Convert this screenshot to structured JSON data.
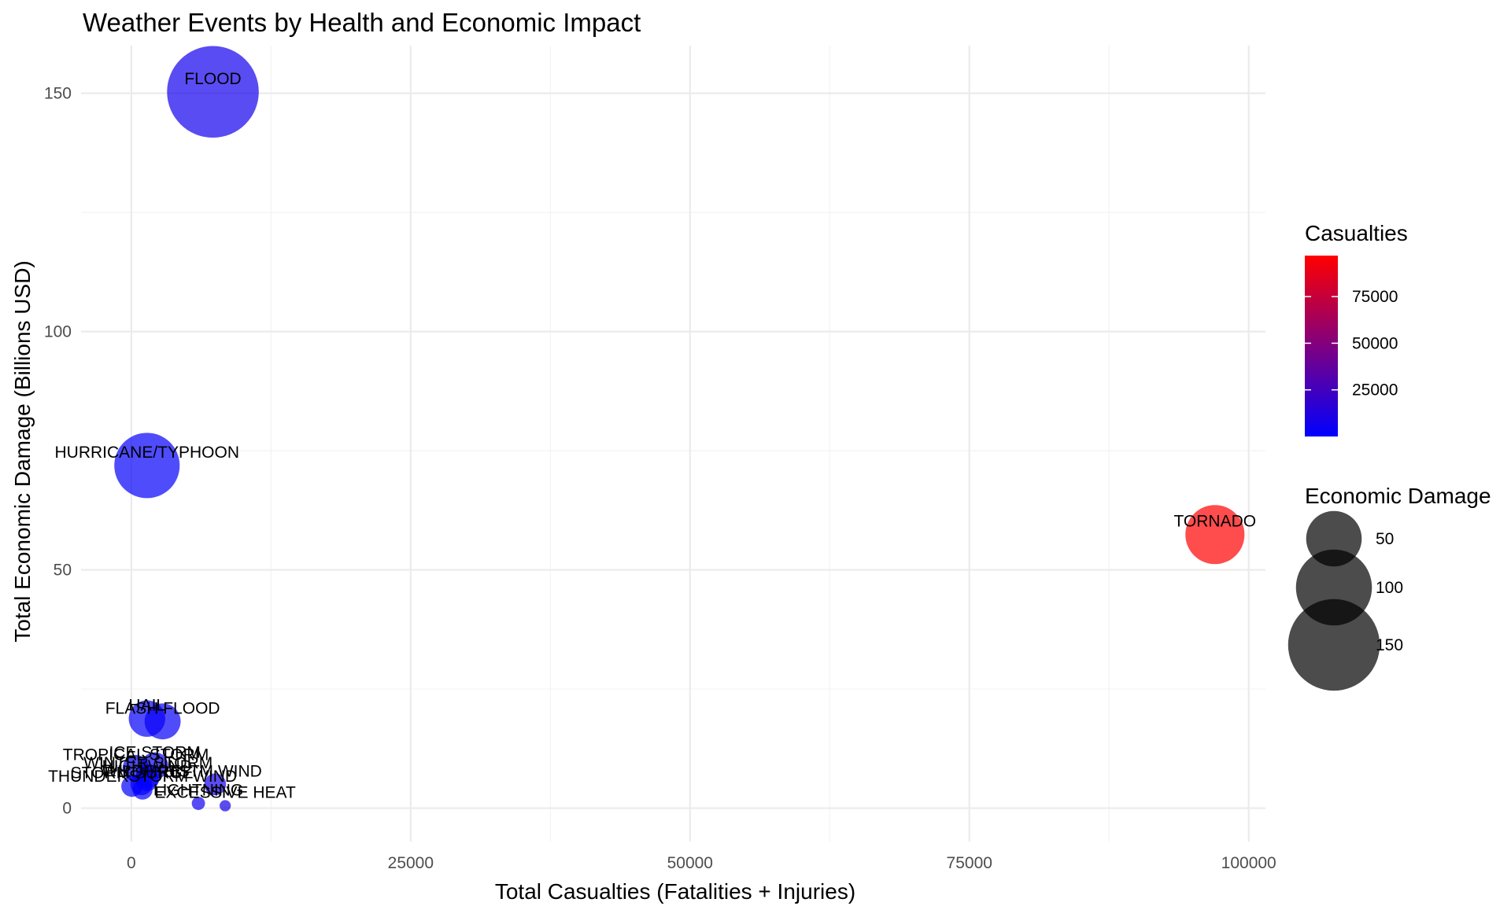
{
  "chart_data": {
    "type": "scatter",
    "title": "Weather Events by Health and Economic Impact",
    "xlabel": "Total Casualties (Fatalities + Injuries)",
    "ylabel": "Total Economic Damage (Billions USD)",
    "xlim": [
      -4500,
      101500
    ],
    "ylim": [
      -7,
      160
    ],
    "x_ticks": [
      0,
      25000,
      50000,
      75000,
      100000
    ],
    "y_ticks": [
      0,
      50,
      100,
      150
    ],
    "grid": true,
    "colors": {
      "low": "#0000ff",
      "high": "#ff0000",
      "alpha": 0.7
    },
    "points": [
      {
        "label": "FLOOD",
        "x": 7300,
        "y": 150.3,
        "size": 150.3
      },
      {
        "label": "HURRICANE/TYPHOON",
        "x": 1400,
        "y": 71.9,
        "size": 71.9
      },
      {
        "label": "TORNADO",
        "x": 96979,
        "y": 57.4,
        "size": 57.4
      },
      {
        "label": "HAIL",
        "x": 1400,
        "y": 18.8,
        "size": 18.8
      },
      {
        "label": "FLASH FLOOD",
        "x": 2800,
        "y": 18.2,
        "size": 18.2
      },
      {
        "label": "ICE STORM",
        "x": 2100,
        "y": 8.9,
        "size": 8.9
      },
      {
        "label": "TROPICAL STORM",
        "x": 400,
        "y": 8.4,
        "size": 8.4
      },
      {
        "label": "WINTER STORM",
        "x": 1500,
        "y": 6.7,
        "size": 6.7
      },
      {
        "label": "HIGH WIND",
        "x": 1400,
        "y": 6.0,
        "size": 6.0
      },
      {
        "label": "STORM SURGE",
        "x": 50,
        "y": 4.6,
        "size": 4.6
      },
      {
        "label": "WILDFIRE",
        "x": 900,
        "y": 5.0,
        "size": 5.0
      },
      {
        "label": "TSTM WIND",
        "x": 7500,
        "y": 5.0,
        "size": 5.0
      },
      {
        "label": "THUNDERSTORM WIND",
        "x": 1000,
        "y": 3.9,
        "size": 3.9
      },
      {
        "label": "LIGHTNING",
        "x": 6000,
        "y": 1.0,
        "size": 1.0
      },
      {
        "label": "EXCESSIVE HEAT",
        "x": 8400,
        "y": 0.5,
        "size": 0.5
      }
    ],
    "legend": {
      "color": {
        "title": "Casualties",
        "ticks": [
          25000,
          50000,
          75000
        ],
        "ticks_label": [
          "25000",
          "50000",
          "75000"
        ],
        "min": 0,
        "max": 96979
      },
      "size": {
        "title": "Economic Damage",
        "values": [
          50,
          100,
          150
        ],
        "labels": [
          "50",
          "100",
          "150"
        ]
      },
      "position": "right"
    }
  }
}
